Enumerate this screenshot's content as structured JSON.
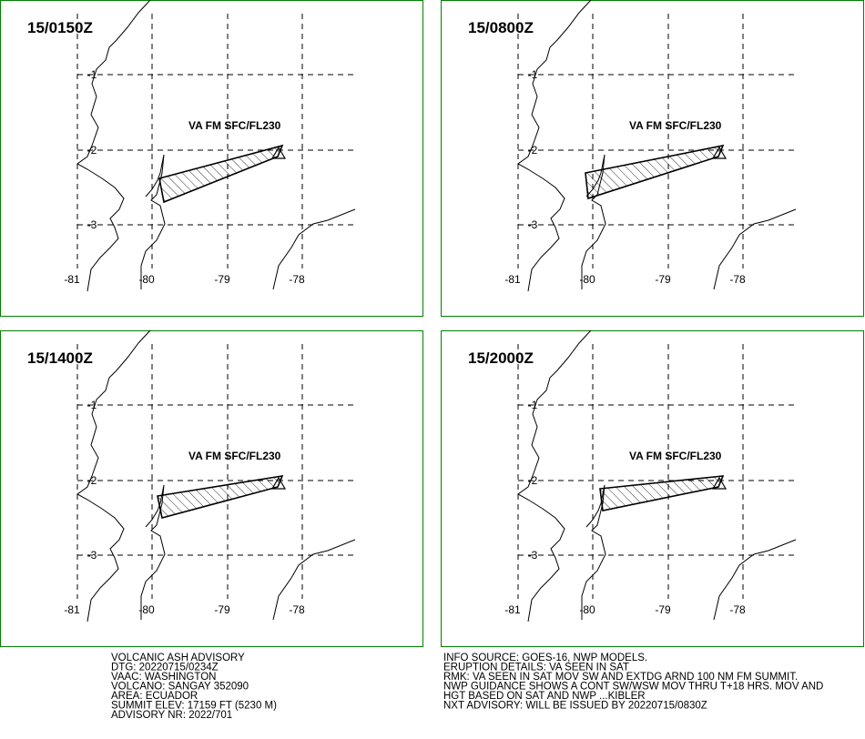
{
  "panels": [
    {
      "title": "15/0150Z",
      "label": "VA FM SFC/FL230"
    },
    {
      "title": "15/0800Z",
      "label": "VA FM SFC/FL230"
    },
    {
      "title": "15/1400Z",
      "label": "VA FM SFC/FL230"
    },
    {
      "title": "15/2000Z",
      "label": "VA FM SFC/FL230"
    }
  ],
  "grid": {
    "lon_labels": [
      "-81",
      "-80",
      "-79",
      "-78"
    ],
    "lat_labels": [
      "-1",
      "-2",
      "-3"
    ]
  },
  "advisory": {
    "left": [
      "VOLCANIC ASH ADVISORY",
      "DTG: 20220715/0234Z",
      "VAAC: WASHINGTON",
      "VOLCANO: SANGAY 352090",
      "AREA: ECUADOR",
      "SUMMIT ELEV: 17159 FT (5230 M)",
      "ADVISORY NR: 2022/701"
    ],
    "right": [
      "INFO SOURCE: GOES-16, NWP MODELS.",
      "ERUPTION DETAILS: VA SEEN IN SAT",
      "RMK: VA SEEN IN SAT MOV SW AND EXTDG ARND 100 NM FM SUMMIT.",
      "NWP GUIDANCE SHOWS A CONT SW/WSW MOV THRU T+18 HRS. MOV AND",
      "HGT BASED ON SAT AND NWP ...KIBLER",
      "NXT ADVISORY: WILL BE ISSUED BY 20220715/0830Z"
    ]
  }
}
